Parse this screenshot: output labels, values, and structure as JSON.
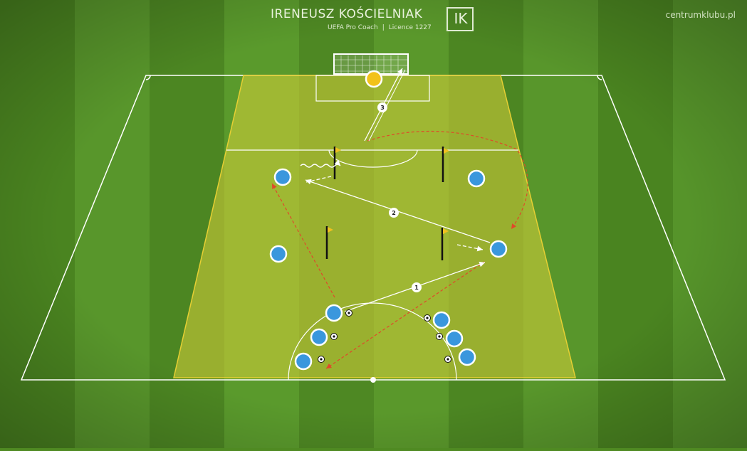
{
  "header": {
    "coach_name": "IRENEUSZ KOŚCIELNIAK",
    "coach_title": "UEFA Pro Coach",
    "licence": "Licence 1227",
    "logo_letters": "IK",
    "site": "centrumklubu.pl"
  },
  "colors": {
    "grass_dark": "#4a8420",
    "grass_light": "#5b9a2b",
    "zone_fill": "#c7c53a",
    "zone_border": "#e0c830",
    "line": "#ffffff",
    "player": "#3a97dd",
    "goalkeeper": "#f2c21a",
    "run_arrow": "#e0482a",
    "flag": "#f0c020"
  },
  "sequence_labels": [
    "1",
    "2",
    "3"
  ],
  "icons": [
    "ball-icon",
    "flag-icon",
    "pole-icon",
    "goal-icon"
  ]
}
